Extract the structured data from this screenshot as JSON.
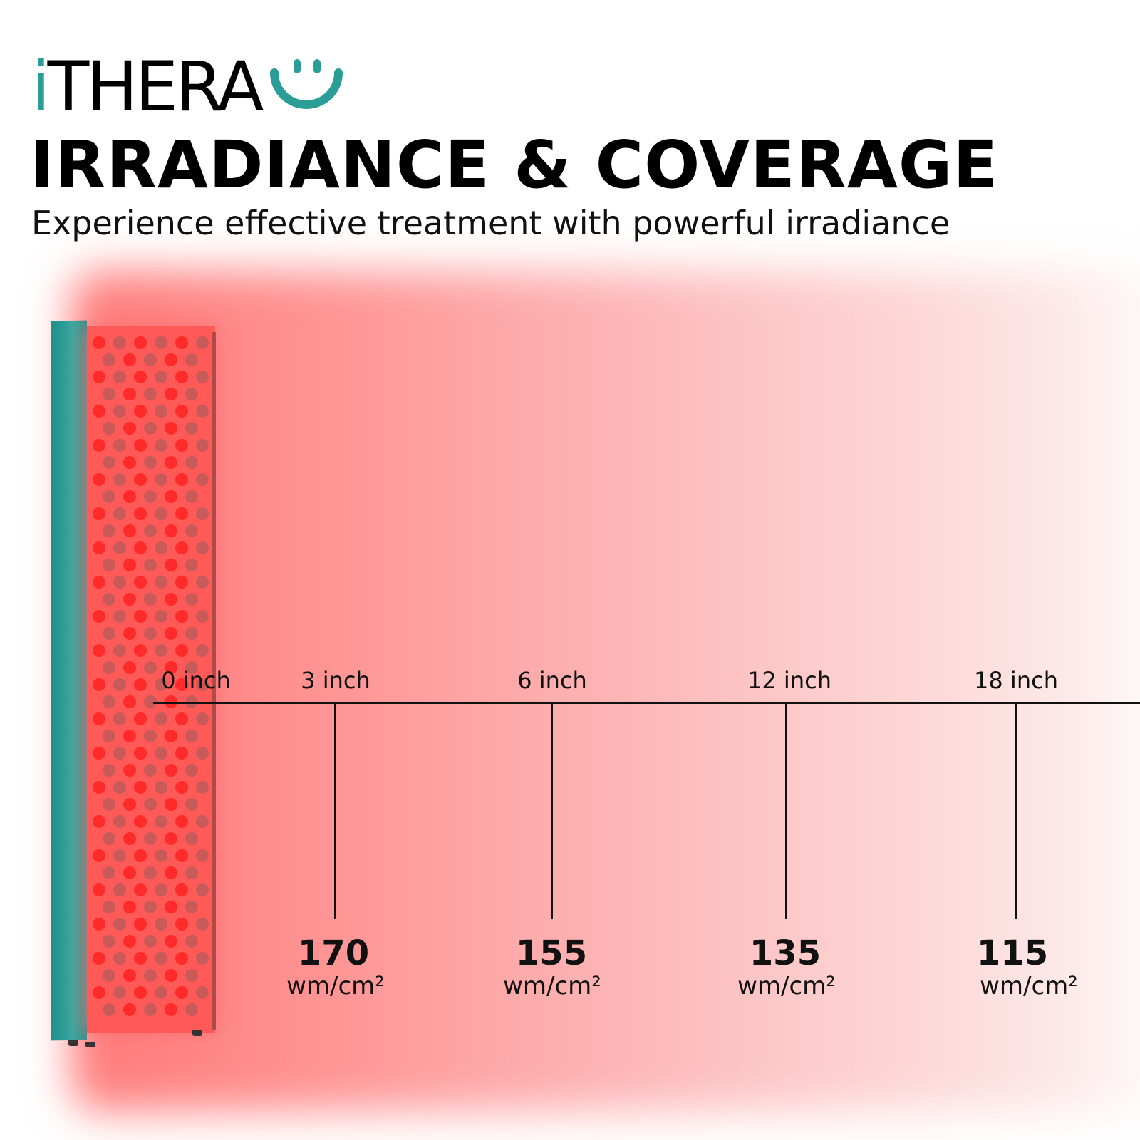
{
  "brand": {
    "logo_text": "THERA",
    "logo_i": "i",
    "accent_color": "#2a9d97"
  },
  "header": {
    "title": "IRRADIANCE & COVERAGE",
    "subtitle": "Experience effective treatment with powerful irradiance"
  },
  "measurements": [
    {
      "distance": "0 inch"
    },
    {
      "distance": "3 inch",
      "value": "170",
      "unit": "wm/cm²"
    },
    {
      "distance": "6 inch",
      "value": "155",
      "unit": "wm/cm²"
    },
    {
      "distance": "12 inch",
      "value": "135",
      "unit": "wm/cm²"
    },
    {
      "distance": "18 inch",
      "value": "115",
      "unit": "wm/cm²"
    }
  ]
}
